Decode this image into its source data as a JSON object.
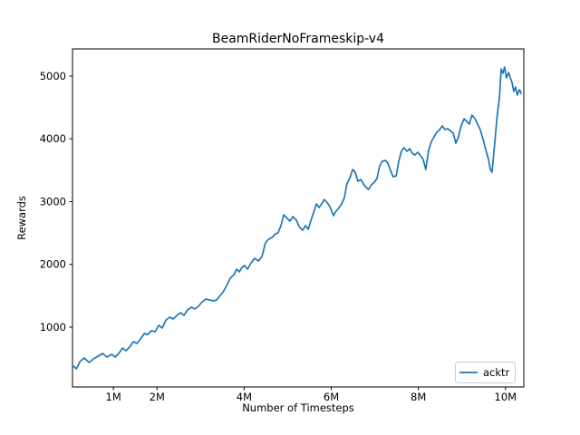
{
  "figure": {
    "background_color": "#ffffff",
    "text_color": "#000000",
    "spine_color": "#000000"
  },
  "chart_data": {
    "type": "line",
    "title": "BeamRiderNoFrameskip-v4",
    "xlabel": "Number of Timesteps",
    "ylabel": "Rewards",
    "x_unit": "millions of timesteps",
    "xlim": [
      0.06,
      10.42
    ],
    "ylim": [
      47,
      5433
    ],
    "grid": false,
    "x_ticks": [
      {
        "value": 1,
        "label": "1M"
      },
      {
        "value": 2,
        "label": "2M"
      },
      {
        "value": 4,
        "label": "4M"
      },
      {
        "value": 6,
        "label": "6M"
      },
      {
        "value": 8,
        "label": "8M"
      },
      {
        "value": 10,
        "label": "10M"
      }
    ],
    "y_ticks": [
      {
        "value": 1000,
        "label": "1000"
      },
      {
        "value": 2000,
        "label": "2000"
      },
      {
        "value": 3000,
        "label": "3000"
      },
      {
        "value": 4000,
        "label": "4000"
      },
      {
        "value": 5000,
        "label": "5000"
      }
    ],
    "legend": {
      "position": "lower right",
      "entries": [
        {
          "label": "acktr",
          "color": "#1f77b4"
        }
      ]
    },
    "series": [
      {
        "name": "acktr",
        "color": "#1f77b4",
        "x": [
          0.06,
          0.15,
          0.23,
          0.33,
          0.44,
          0.54,
          0.65,
          0.75,
          0.85,
          0.96,
          1.04,
          1.12,
          1.21,
          1.29,
          1.37,
          1.46,
          1.54,
          1.62,
          1.71,
          1.79,
          1.87,
          1.96,
          2.04,
          2.12,
          2.21,
          2.29,
          2.37,
          2.46,
          2.54,
          2.62,
          2.7,
          2.79,
          2.87,
          2.95,
          3.04,
          3.12,
          3.2,
          3.29,
          3.37,
          3.45,
          3.52,
          3.6,
          3.68,
          3.77,
          3.83,
          3.89,
          3.95,
          4.01,
          4.08,
          4.16,
          4.24,
          4.33,
          4.41,
          4.49,
          4.56,
          4.64,
          4.72,
          4.78,
          4.85,
          4.91,
          4.99,
          5.05,
          5.12,
          5.2,
          5.26,
          5.34,
          5.41,
          5.47,
          5.53,
          5.59,
          5.66,
          5.72,
          5.78,
          5.84,
          5.91,
          5.97,
          6.05,
          6.11,
          6.18,
          6.24,
          6.3,
          6.36,
          6.43,
          6.49,
          6.55,
          6.61,
          6.68,
          6.74,
          6.8,
          6.86,
          6.92,
          6.99,
          7.05,
          7.11,
          7.17,
          7.24,
          7.3,
          7.36,
          7.42,
          7.49,
          7.55,
          7.61,
          7.67,
          7.74,
          7.8,
          7.86,
          7.92,
          7.99,
          8.05,
          8.11,
          8.17,
          8.24,
          8.3,
          8.36,
          8.42,
          8.49,
          8.55,
          8.61,
          8.67,
          8.73,
          8.8,
          8.86,
          8.92,
          8.98,
          9.05,
          9.11,
          9.17,
          9.23,
          9.3,
          9.36,
          9.42,
          9.48,
          9.54,
          9.61,
          9.65,
          9.69,
          9.73,
          9.77,
          9.81,
          9.86,
          9.9,
          9.94,
          9.98,
          10.02,
          10.07,
          10.11,
          10.15,
          10.19,
          10.23,
          10.27,
          10.32,
          10.36
        ],
        "y": [
          394,
          336,
          451,
          509,
          437,
          495,
          538,
          581,
          524,
          567,
          524,
          581,
          668,
          625,
          682,
          769,
          740,
          812,
          899,
          884,
          942,
          928,
          1029,
          986,
          1116,
          1159,
          1130,
          1188,
          1231,
          1188,
          1274,
          1318,
          1289,
          1332,
          1404,
          1448,
          1433,
          1419,
          1433,
          1505,
          1563,
          1664,
          1780,
          1838,
          1924,
          1881,
          1953,
          1982,
          1924,
          2025,
          2097,
          2054,
          2126,
          2343,
          2401,
          2430,
          2487,
          2502,
          2632,
          2791,
          2733,
          2689,
          2762,
          2704,
          2603,
          2545,
          2617,
          2559,
          2689,
          2819,
          2964,
          2906,
          2964,
          3036,
          2978,
          2921,
          2776,
          2848,
          2906,
          2964,
          3065,
          3281,
          3383,
          3513,
          3469,
          3325,
          3354,
          3281,
          3224,
          3195,
          3267,
          3310,
          3368,
          3570,
          3642,
          3657,
          3614,
          3498,
          3397,
          3411,
          3642,
          3801,
          3859,
          3801,
          3845,
          3772,
          3743,
          3787,
          3729,
          3671,
          3513,
          3830,
          3960,
          4032,
          4104,
          4148,
          4205,
          4148,
          4162,
          4133,
          4090,
          3931,
          4032,
          4205,
          4321,
          4278,
          4234,
          4379,
          4321,
          4234,
          4148,
          4003,
          3845,
          3671,
          3513,
          3469,
          3758,
          4075,
          4379,
          4653,
          5115,
          5043,
          5144,
          4971,
          5058,
          4971,
          4899,
          4754,
          4826,
          4697,
          4783,
          4726
        ]
      }
    ]
  }
}
